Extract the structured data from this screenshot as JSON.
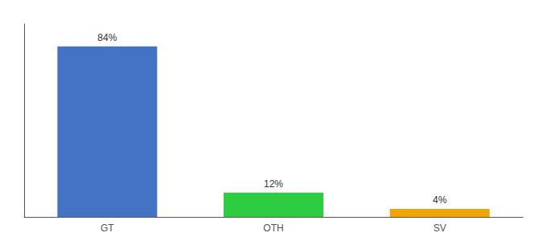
{
  "chart_data": {
    "type": "bar",
    "categories": [
      "GT",
      "OTH",
      "SV"
    ],
    "values": [
      84,
      12,
      4
    ],
    "value_labels": [
      "84%",
      "12%",
      "4%"
    ],
    "colors": [
      "#4472c4",
      "#2ecc40",
      "#f0a500"
    ],
    "ylim": [
      0,
      95
    ],
    "data_labels": true,
    "tick_labels": "x",
    "grid": false
  }
}
